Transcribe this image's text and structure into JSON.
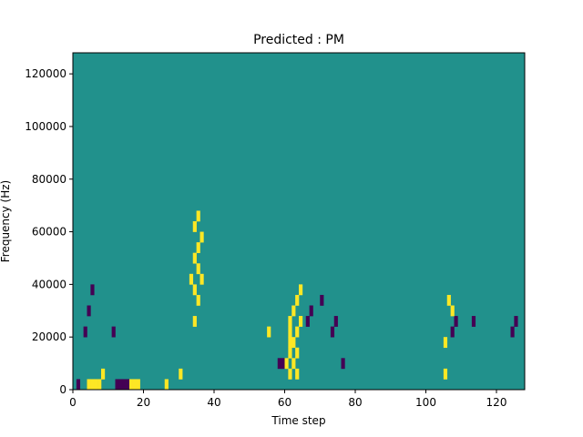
{
  "chart_data": {
    "type": "heatmap",
    "title": "Predicted : PM",
    "xlabel": "Time step",
    "ylabel": "Frequency (Hz)",
    "xlim": [
      0,
      128
    ],
    "ylim": [
      0,
      128000
    ],
    "x_ticks": [
      0,
      20,
      40,
      60,
      80,
      100,
      120
    ],
    "y_ticks": [
      0,
      20000,
      40000,
      60000,
      80000,
      100000,
      120000
    ],
    "x_tick_labels": [
      "0",
      "20",
      "40",
      "60",
      "80",
      "100",
      "120"
    ],
    "y_tick_labels": [
      "0",
      "20000",
      "40000",
      "60000",
      "80000",
      "100000",
      "120000"
    ],
    "grid": false,
    "colors": {
      "background": "#21918c",
      "high": "#fde725",
      "low": "#440154"
    },
    "high_cells": [
      [
        4,
        2000
      ],
      [
        5,
        2000
      ],
      [
        6,
        2000
      ],
      [
        7,
        2000
      ],
      [
        8,
        6000
      ],
      [
        16,
        2000
      ],
      [
        17,
        2000
      ],
      [
        18,
        2000
      ],
      [
        26,
        2000
      ],
      [
        30,
        6000
      ],
      [
        33,
        42000
      ],
      [
        34,
        26000
      ],
      [
        34,
        38000
      ],
      [
        34,
        50000
      ],
      [
        34,
        62000
      ],
      [
        35,
        34000
      ],
      [
        35,
        46000
      ],
      [
        35,
        54000
      ],
      [
        35,
        66000
      ],
      [
        36,
        42000
      ],
      [
        36,
        58000
      ],
      [
        55,
        22000
      ],
      [
        60,
        10000
      ],
      [
        61,
        6000
      ],
      [
        61,
        14000
      ],
      [
        61,
        18000
      ],
      [
        61,
        22000
      ],
      [
        61,
        26000
      ],
      [
        62,
        10000
      ],
      [
        62,
        18000
      ],
      [
        62,
        30000
      ],
      [
        63,
        6000
      ],
      [
        63,
        14000
      ],
      [
        63,
        22000
      ],
      [
        63,
        34000
      ],
      [
        64,
        26000
      ],
      [
        64,
        38000
      ],
      [
        105,
        6000
      ],
      [
        105,
        18000
      ],
      [
        106,
        34000
      ],
      [
        107,
        30000
      ]
    ],
    "low_cells": [
      [
        1,
        2000
      ],
      [
        3,
        22000
      ],
      [
        4,
        30000
      ],
      [
        5,
        38000
      ],
      [
        11,
        22000
      ],
      [
        12,
        2000
      ],
      [
        13,
        2000
      ],
      [
        14,
        2000
      ],
      [
        15,
        2000
      ],
      [
        58,
        10000
      ],
      [
        59,
        10000
      ],
      [
        66,
        26000
      ],
      [
        67,
        30000
      ],
      [
        70,
        34000
      ],
      [
        73,
        22000
      ],
      [
        74,
        26000
      ],
      [
        76,
        10000
      ],
      [
        107,
        22000
      ],
      [
        108,
        26000
      ],
      [
        113,
        26000
      ],
      [
        124,
        22000
      ],
      [
        125,
        26000
      ]
    ]
  }
}
